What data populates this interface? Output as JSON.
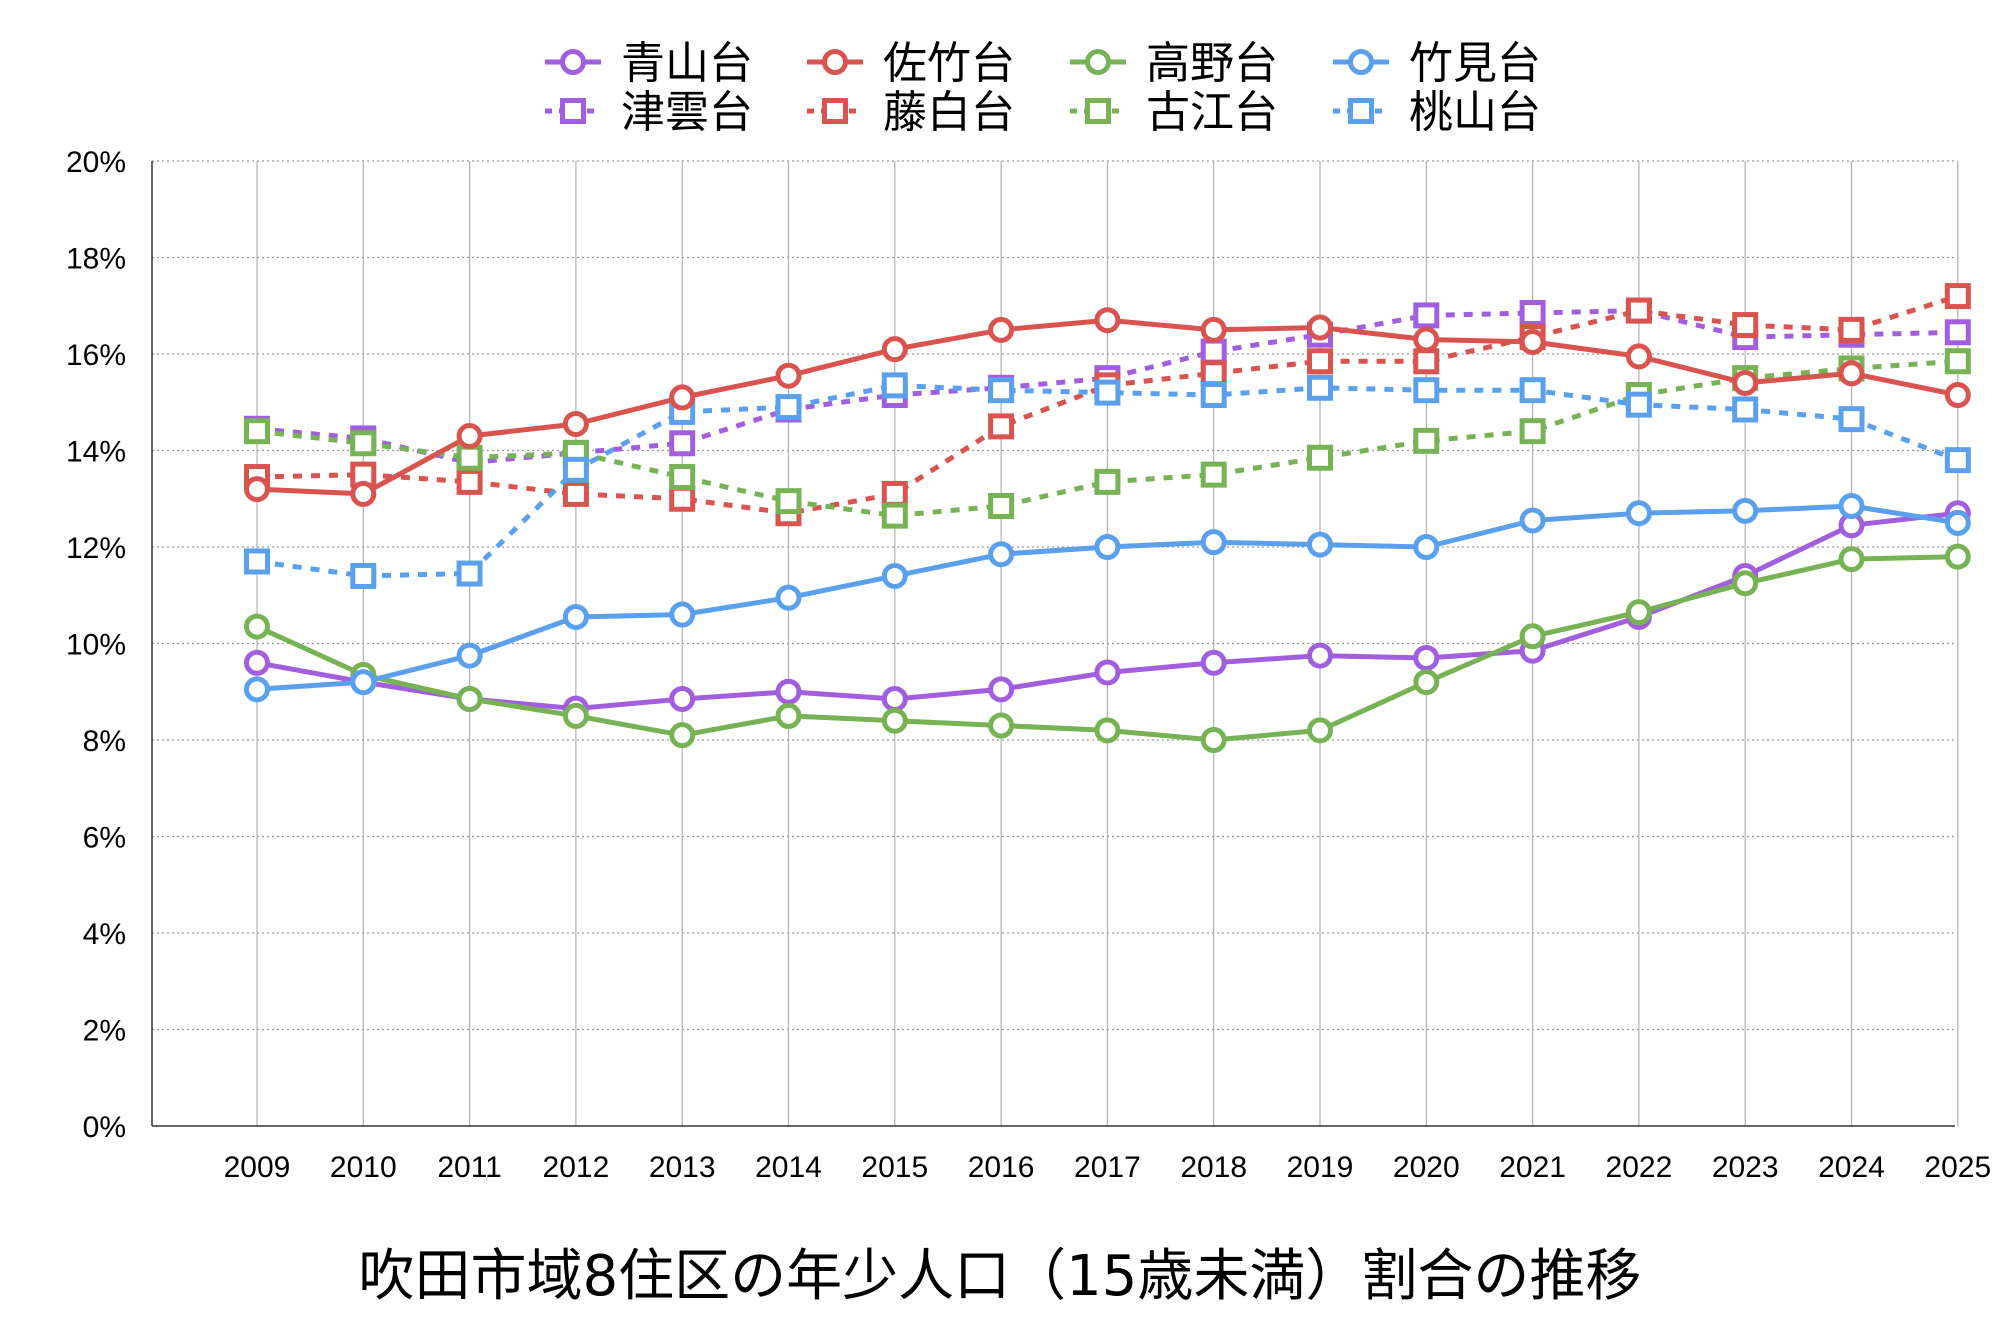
{
  "chart_data": {
    "type": "line",
    "title": "吹田市域8住区の年少人口（15歳未満）割合の推移",
    "xlabel": "",
    "ylabel": "",
    "ylim": [
      0,
      20
    ],
    "y_ticks": [
      "0%",
      "2%",
      "4%",
      "6%",
      "8%",
      "10%",
      "12%",
      "14%",
      "16%",
      "18%",
      "20%"
    ],
    "x": [
      "2009",
      "2010",
      "2011",
      "2012",
      "2013",
      "2014",
      "2015",
      "2016",
      "2017",
      "2018",
      "2019",
      "2020",
      "2021",
      "2022",
      "2023",
      "2024",
      "2025"
    ],
    "grid": true,
    "legend_position": "top",
    "series": [
      {
        "name": "青山台",
        "color": "#A15FE0",
        "marker": "circle",
        "dash": false,
        "values": [
          9.6,
          9.2,
          8.85,
          8.65,
          8.85,
          9.0,
          8.85,
          9.05,
          9.4,
          9.6,
          9.75,
          9.7,
          9.85,
          10.55,
          11.4,
          12.45,
          12.7
        ]
      },
      {
        "name": "佐竹台",
        "color": "#D9534F",
        "marker": "circle",
        "dash": false,
        "values": [
          13.2,
          13.1,
          14.3,
          14.55,
          15.1,
          15.55,
          16.1,
          16.5,
          16.7,
          16.5,
          16.55,
          16.3,
          16.25,
          15.95,
          15.4,
          15.6,
          15.15
        ]
      },
      {
        "name": "高野台",
        "color": "#77B255",
        "marker": "circle",
        "dash": false,
        "values": [
          10.35,
          9.35,
          8.85,
          8.5,
          8.1,
          8.5,
          8.4,
          8.3,
          8.2,
          8.0,
          8.2,
          9.2,
          10.15,
          10.65,
          11.25,
          11.75,
          11.8
        ]
      },
      {
        "name": "竹見台",
        "color": "#5AA0EC",
        "marker": "circle",
        "dash": false,
        "values": [
          9.05,
          9.2,
          9.75,
          10.55,
          10.6,
          10.95,
          11.4,
          11.85,
          12.0,
          12.1,
          12.05,
          12.0,
          12.55,
          12.7,
          12.75,
          12.85,
          12.5
        ]
      },
      {
        "name": "津雲台",
        "color": "#A15FE0",
        "marker": "square",
        "dash": true,
        "values": [
          14.45,
          14.25,
          13.75,
          13.95,
          14.15,
          14.85,
          15.15,
          15.3,
          15.5,
          16.05,
          16.4,
          16.8,
          16.85,
          16.9,
          16.35,
          16.4,
          16.45
        ]
      },
      {
        "name": "藤白台",
        "color": "#D9534F",
        "marker": "square",
        "dash": true,
        "values": [
          13.45,
          13.5,
          13.35,
          13.1,
          13.0,
          12.7,
          13.1,
          14.5,
          15.35,
          15.6,
          15.85,
          15.85,
          16.35,
          16.9,
          16.6,
          16.5,
          17.2
        ]
      },
      {
        "name": "古江台",
        "color": "#77B255",
        "marker": "square",
        "dash": true,
        "values": [
          14.4,
          14.15,
          13.85,
          13.95,
          13.45,
          12.95,
          12.65,
          12.85,
          13.35,
          13.5,
          13.85,
          14.2,
          14.4,
          15.15,
          15.5,
          15.7,
          15.85
        ]
      },
      {
        "name": "桃山台",
        "color": "#5AA0EC",
        "marker": "square",
        "dash": true,
        "values": [
          11.7,
          11.4,
          11.45,
          13.6,
          14.8,
          14.9,
          15.35,
          15.25,
          15.2,
          15.15,
          15.3,
          15.25,
          15.25,
          14.95,
          14.85,
          14.65,
          13.8
        ]
      }
    ]
  }
}
